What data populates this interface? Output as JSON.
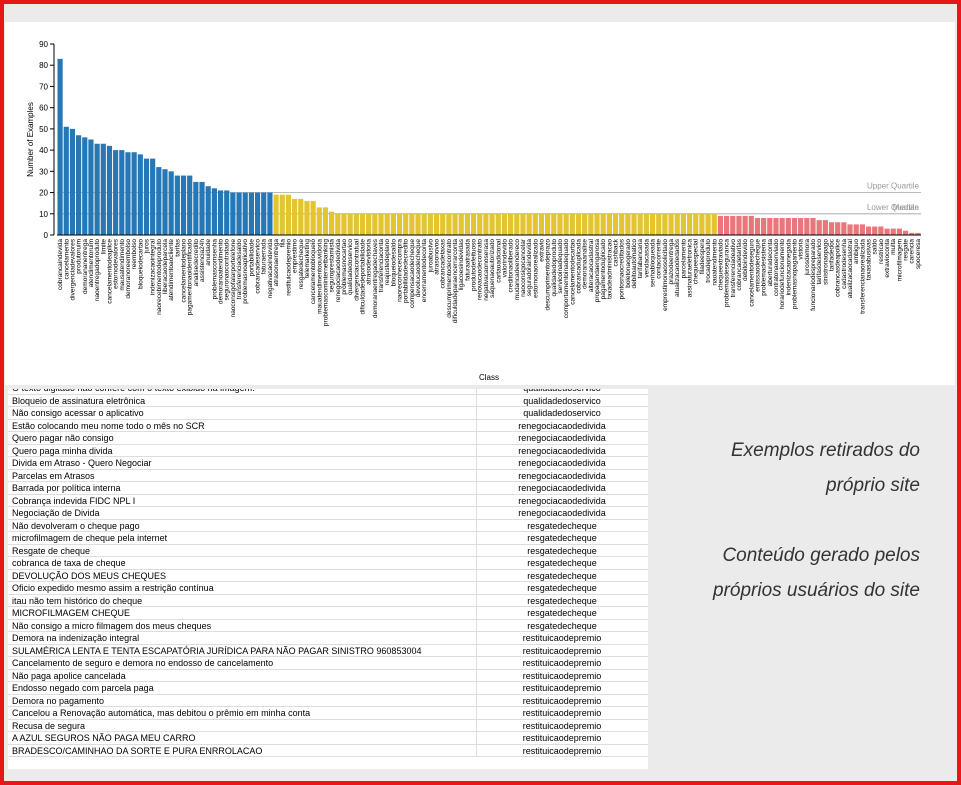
{
  "chart_data": {
    "type": "bar",
    "ylabel": "Number of Examples",
    "xlabel": "Class",
    "ylim": [
      0,
      90
    ],
    "yticks": [
      0,
      10,
      20,
      30,
      40,
      50,
      60,
      70,
      80,
      90
    ],
    "quartile_colors": [
      "#2677b5",
      "#e3c52f",
      "#e8767b"
    ],
    "reference_lines": [
      {
        "label": "Upper Quartile",
        "value": 20
      },
      {
        "label": "Lower Quartile",
        "value": 10
      },
      {
        "label": "Median",
        "value": 10
      }
    ],
    "categories": [
      "cobrancaindevida",
      "cancelamento",
      "divergenciadevalores",
      "produtoruim",
      "demorananentrega",
      "atendimentoruim",
      "naoentregadoproduto",
      "limite",
      "cancelamentodeaplice",
      "estornodevalores",
      "mausatendimento",
      "demoranoreembolso",
      "reembolso",
      "bloqueiodecartao",
      "juros",
      "indenizacaointegral",
      "naorecebimentodeproduto",
      "liberacaodeparcela",
      "atendimentoaocliente",
      "tarifas",
      "cancelamentodeplano",
      "pagamentonaoidentificado",
      "analisedecredito",
      "assistencia24h",
      "anuidade",
      "problemascomsenha",
      "demoranoatendimento",
      "seguronaocontratado",
      "naoconsigofalarportelefone",
      "transferenciadesaldo",
      "problemasnoaplicativo",
      "portabilidade",
      "cobrancadeservico",
      "faturaerrada",
      "negativacaoindevida",
      "atrasonaentrega",
      "fila",
      "restituicaodepremio",
      "emprestimo",
      "resgatedecheque",
      "telemarketing",
      "cancelamentobloqueio",
      "mauatendimentoouvidoria",
      "problemascominternetbanking",
      "seguroprestamista",
      "renegociacaodedivida",
      "problemasnocartao",
      "qualidadedoservico",
      "divergenciacontratual",
      "dificuldadedeportabilidade",
      "atrasodevistoria",
      "demoranaentregadechaves",
      "transferenciaconta",
      "reajustedeplano",
      "bloqueiodesaldo",
      "naoreconhececompra",
      "portabilidadedecredito",
      "compensacaodecheque",
      "devolucaodecheque",
      "encerramentodeconta",
      "juroabusivo",
      "atrasonovoo",
      "cobrancadetaxas",
      "descumprimentodecontrato",
      "dificuldadeparaencerrarconta",
      "ligacoesindevidas",
      "faturaatrasada",
      "produtodefeituoso",
      "renovacaodecontrato",
      "negativacaonoserasa",
      "saquenaoautorizado",
      "cartaoadicional",
      "valorindevido",
      "creditonaoliberado",
      "mudancadeendereco",
      "naoconsigocancelar",
      "seguradoraindevida",
      "estornonaorealizado",
      "extravio",
      "descumprimentodeprazo",
      "qualidadedoproduto",
      "servicoinadequado",
      "comportamentoinadequado",
      "cancelamentodecartao",
      "cobrancaduplicada",
      "demoranaanalise",
      "alteracaocadastral",
      "propagandaenganosa",
      "pagamentoduplicado",
      "taxadeadministracao",
      "cashback",
      "pontosnaocreditados",
      "boletonaogerado",
      "debitoautomatico",
      "tarifabancaria",
      "vendacasada",
      "senhabloqueada",
      "contacorrente",
      "emprestimonaosolicitado",
      "prazodeentrega",
      "atualizacaodedados",
      "parcelamento",
      "assinaturaeletronica",
      "chequeespecial",
      "filadeespera",
      "trocadeproduto",
      "naoatendimento",
      "chequeextraviado",
      "problemasdeseguranca",
      "transferenciadeativo",
      "cobrancadetarifas",
      "debitoindevido",
      "cancelamentodeseguro",
      "emissaodecheque",
      "problemadesistema",
      "aberturadeconta",
      "contratonaoenviado",
      "horariodefuncionamento",
      "indenizacaonegada",
      "problemasnopagamento",
      "vistoria",
      "jurosdemora",
      "funcionariodespreparado",
      "tarifasdeservico",
      "sinistronaopago",
      "tarifadedoc",
      "cobrancasdeapolice",
      "cadastrodesenha",
      "atualizacaocadastral",
      "ambiguo",
      "transferencianaorealizada",
      "taxasabusivas",
      "saldo",
      "restricao",
      "extravioconta",
      "multa",
      "microfilmagem",
      "resgate",
      "carencia",
      "spoceresa"
    ],
    "values": [
      83,
      51,
      50,
      47,
      46,
      45,
      43,
      43,
      42,
      40,
      40,
      39,
      39,
      38,
      36,
      36,
      32,
      31,
      30,
      28,
      28,
      28,
      25,
      25,
      23,
      22,
      21,
      21,
      20,
      20,
      20,
      20,
      20,
      20,
      20,
      19,
      19,
      19,
      17,
      17,
      16,
      16,
      13,
      13,
      11,
      10,
      10,
      10,
      10,
      10,
      10,
      10,
      10,
      10,
      10,
      10,
      10,
      10,
      10,
      10,
      10,
      10,
      10,
      10,
      10,
      10,
      10,
      10,
      10,
      10,
      10,
      10,
      10,
      10,
      10,
      10,
      10,
      10,
      10,
      10,
      10,
      10,
      10,
      10,
      10,
      10,
      10,
      10,
      10,
      10,
      10,
      10,
      10,
      10,
      10,
      10,
      10,
      10,
      10,
      10,
      10,
      10,
      10,
      10,
      10,
      10,
      10,
      9,
      9,
      9,
      9,
      9,
      9,
      8,
      8,
      8,
      8,
      8,
      8,
      8,
      8,
      8,
      8,
      7,
      7,
      6,
      6,
      6,
      5,
      5,
      5,
      4,
      4,
      4,
      3,
      3,
      3,
      2,
      1,
      1
    ]
  },
  "table": {
    "rows": [
      [
        "O texto digitado não confere com o texto exibido na imagem.",
        "qualidadedoservico"
      ],
      [
        "Bloqueio de assinatura eletrônica",
        "qualidadedoservico"
      ],
      [
        "Não consigo acessar o aplicativo",
        "qualidadedoservico"
      ],
      [
        "Estão colocando meu nome todo o mês no SCR",
        "renegociacaodedivida"
      ],
      [
        "Quero pagar não consigo",
        "renegociacaodedivida"
      ],
      [
        "Quero paga minha divida",
        "renegociacaodedivida"
      ],
      [
        "Divida em Atraso - Quero Negociar",
        "renegociacaodedivida"
      ],
      [
        "Parcelas em Atrasos",
        "renegociacaodedivida"
      ],
      [
        "Barrada por política interna",
        "renegociacaodedivida"
      ],
      [
        "Cobrança indevida FIDC NPL I",
        "renegociacaodedivida"
      ],
      [
        "Negociação de Divida",
        "renegociacaodedivida"
      ],
      [
        "Não devolveram o cheque pago",
        "resgatedecheque"
      ],
      [
        "microfilmagem de cheque pela internet",
        "resgatedecheque"
      ],
      [
        "Resgate de cheque",
        "resgatedecheque"
      ],
      [
        "cobranca de taxa de cheque",
        "resgatedecheque"
      ],
      [
        "DEVOLUÇÃO DOS MEUS CHEQUES",
        "resgatedecheque"
      ],
      [
        "Oficio expedido mesmo assim a restrição contínua",
        "resgatedecheque"
      ],
      [
        "itau não tem histórico do cheque",
        "resgatedecheque"
      ],
      [
        "MICROFILMAGEM CHEQUE",
        "resgatedecheque"
      ],
      [
        "Não consigo a micro filmagem dos meus cheques",
        "resgatedecheque"
      ],
      [
        "Demora na indenização integral",
        "restituicaodepremio"
      ],
      [
        "SULAMÉRICA LENTA E TENTA ESCAPATÓRIA JURÍDICA PARA NÃO PAGAR SINISTRO 960853004",
        "restituicaodepremio"
      ],
      [
        "Cancelamento de seguro e demora no endosso de cancelamento",
        "restituicaodepremio"
      ],
      [
        "Não paga apolice cancelada",
        "restituicaodepremio"
      ],
      [
        "Endosso negado com parcela paga",
        "restituicaodepremio"
      ],
      [
        "Demora no pagamento",
        "restituicaodepremio"
      ],
      [
        "Cancelou a Renovação automática, mas debitou o prêmio em minha conta",
        "restituicaodepremio"
      ],
      [
        "Recusa de segura",
        "restituicaodepremio"
      ],
      [
        "A AZUL SEGUROS NÃO PAGA MEU CARRO",
        "restituicaodepremio"
      ],
      [
        "BRADESCO/CAMINHAO DA SORTE E PURA ENRROLACAO",
        "restituicaodepremio"
      ]
    ]
  },
  "notes": [
    [
      "Exemplos retirados do",
      "próprio site"
    ],
    [
      "Conteúdo gerado pelos",
      "próprios usuários do site"
    ]
  ]
}
